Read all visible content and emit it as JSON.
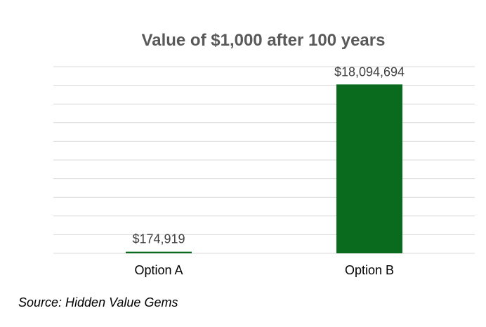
{
  "chart_data": {
    "type": "bar",
    "title": "Value of $1,000 after 100 years",
    "categories": [
      "Option A",
      "Option B"
    ],
    "values": [
      174919,
      18094694
    ],
    "data_labels": [
      "$174,919",
      "$18,094,694"
    ],
    "ylim": [
      0,
      20000000
    ],
    "grid": true,
    "legend": "none",
    "xlabel": "",
    "ylabel": ""
  },
  "colors": {
    "bar": "#0a6b1f",
    "grid": "#d9d9d9",
    "title": "#595959"
  },
  "source": "Source: Hidden Value Gems"
}
